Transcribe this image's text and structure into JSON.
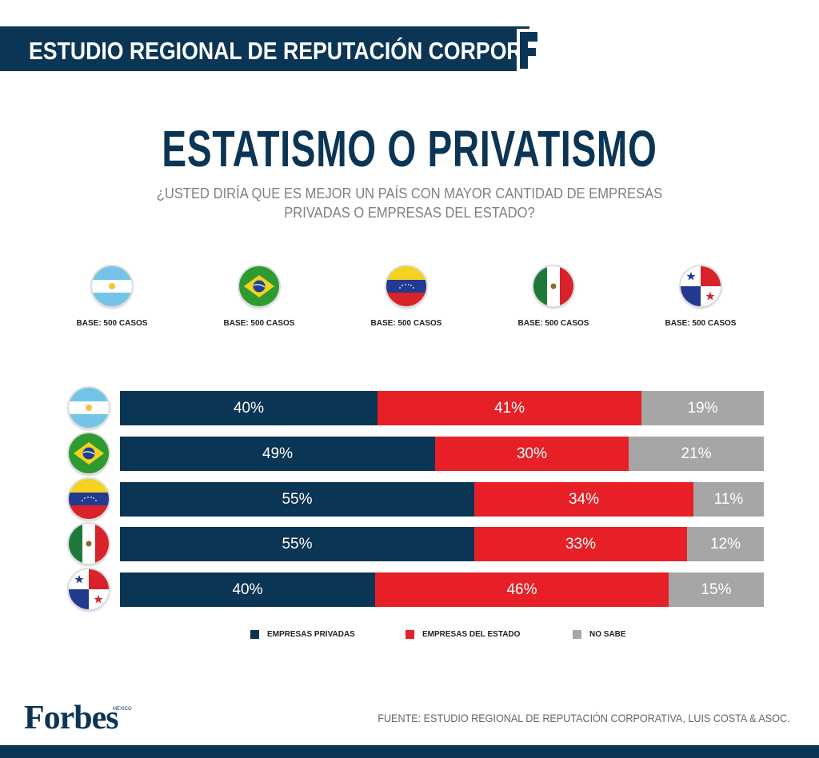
{
  "header": {
    "banner": "ESTUDIO REGIONAL DE REPUTACIÓN CORPORATIVA",
    "title": "ESTATISMO O PRIVATISMO",
    "question_line1": "¿USTED DIRÍA QUE ES MEJOR UN PAÍS CON MAYOR CANTIDAD DE EMPRESAS",
    "question_line2": "PRIVADAS O EMPRESAS DEL ESTADO?"
  },
  "countries": [
    {
      "flag": "argentina-flag-icon",
      "base": "BASE: 500 CASOS"
    },
    {
      "flag": "brazil-flag-icon",
      "base": "BASE: 500 CASOS"
    },
    {
      "flag": "venezuela-flag-icon",
      "base": "BASE: 500 CASOS"
    },
    {
      "flag": "mexico-flag-icon",
      "base": "BASE: 500 CASOS"
    },
    {
      "flag": "panama-flag-icon",
      "base": "BASE: 500 CASOS"
    }
  ],
  "colors": {
    "privadas": "#0b3555",
    "estado": "#e62026",
    "no_sabe": "#a6a6a6"
  },
  "chart_data": {
    "type": "bar",
    "orientation": "horizontal-stacked-100",
    "title": "ESTATISMO O PRIVATISMO",
    "categories": [
      "Argentina",
      "Brasil",
      "Venezuela",
      "México",
      "Panamá"
    ],
    "series": [
      {
        "name": "EMPRESAS PRIVADAS",
        "values": [
          40,
          49,
          55,
          55,
          40
        ],
        "labels": [
          "40%",
          "49%",
          "55%",
          "55%",
          "40%"
        ]
      },
      {
        "name": "EMPRESAS DEL ESTADO",
        "values": [
          41,
          30,
          34,
          33,
          46
        ],
        "labels": [
          "41%",
          "30%",
          "34%",
          "33%",
          "46%"
        ]
      },
      {
        "name": "NO SABE",
        "values": [
          19,
          21,
          11,
          12,
          15
        ],
        "labels": [
          "19%",
          "21%",
          "11%",
          "12%",
          "15%"
        ]
      }
    ],
    "xlim": [
      0,
      100
    ],
    "legend": "bottom"
  },
  "footer": {
    "logo": "Forbes",
    "logo_sub": "MÉXICO",
    "source": "FUENTE: ESTUDIO REGIONAL DE REPUTACIÓN CORPORATIVA, LUIS COSTA & ASOC."
  }
}
